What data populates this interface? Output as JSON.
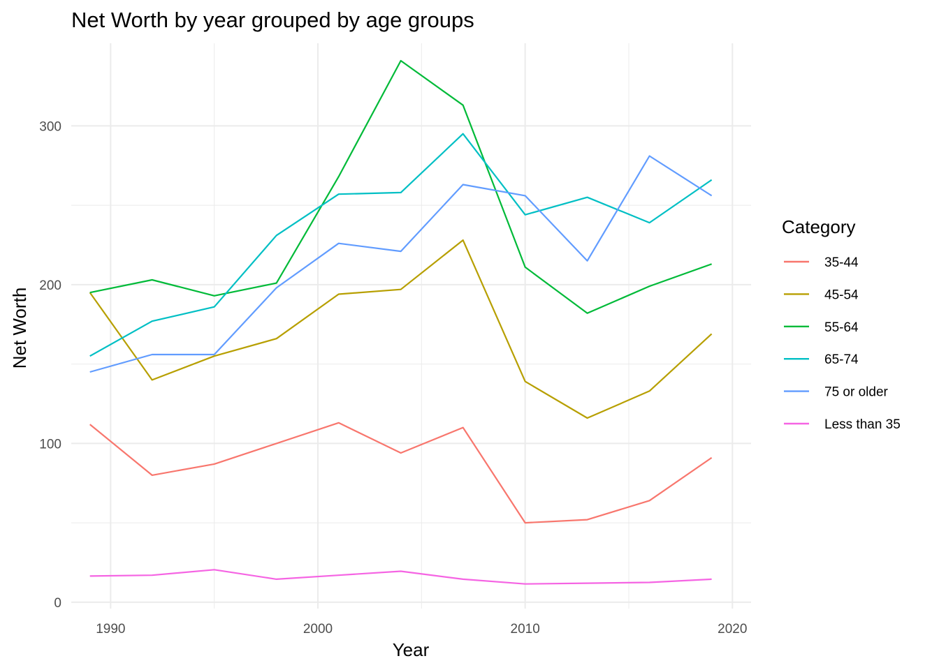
{
  "chart_data": {
    "type": "line",
    "title": "Net Worth by year grouped by age groups",
    "xlabel": "Year",
    "ylabel": "Net Worth",
    "xlim": [
      1988.1,
      2020.9
    ],
    "ylim": [
      -4,
      352
    ],
    "x_ticks": [
      1990,
      2000,
      2010,
      2020
    ],
    "y_ticks": [
      0,
      100,
      200,
      300
    ],
    "x_minor": [
      1995,
      2005,
      2015
    ],
    "y_minor": [
      50,
      150,
      250
    ],
    "grid": true,
    "legend": {
      "title": "Category",
      "position": "right"
    },
    "x": [
      1989,
      1992,
      1995,
      1998,
      2001,
      2004,
      2007,
      2010,
      2013,
      2016,
      2019
    ],
    "series": [
      {
        "name": "35-44",
        "color": "#F8766D",
        "values": [
          112,
          80,
          87,
          100,
          113,
          94,
          110,
          50,
          52,
          64,
          91
        ]
      },
      {
        "name": "45-54",
        "color": "#B79F00",
        "values": [
          195,
          140,
          155,
          166,
          194,
          197,
          228,
          139,
          116,
          133,
          169
        ]
      },
      {
        "name": "55-64",
        "color": "#00BA38",
        "values": [
          195,
          203,
          193,
          201,
          268,
          341,
          313,
          211,
          182,
          199,
          213
        ]
      },
      {
        "name": "65-74",
        "color": "#00BFC4",
        "values": [
          155,
          177,
          186,
          231,
          257,
          258,
          295,
          244,
          255,
          239,
          266
        ]
      },
      {
        "name": "75 or older",
        "color": "#619CFF",
        "values": [
          145,
          156,
          156,
          198,
          226,
          221,
          263,
          256,
          215,
          281,
          256
        ]
      },
      {
        "name": "Less than 35",
        "color": "#F564E3",
        "values": [
          16.5,
          17,
          20.5,
          14.5,
          17,
          19.5,
          14.5,
          11.5,
          12,
          12.5,
          14.5
        ]
      }
    ]
  }
}
